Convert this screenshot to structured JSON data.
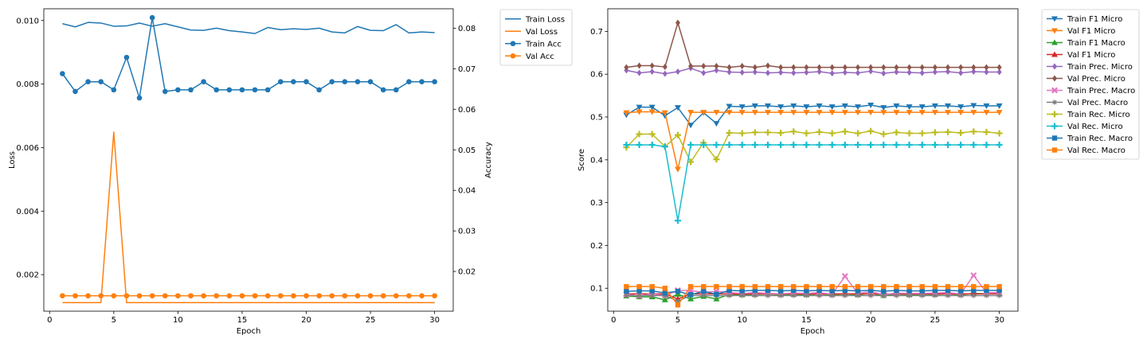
{
  "colors": {
    "blue": "#1f77b4",
    "orange": "#ff7f0e",
    "green": "#2ca02c",
    "red": "#d62728",
    "purple": "#9467bd",
    "brown": "#8c564b",
    "pink": "#e377c2",
    "gray": "#7f7f7f",
    "olive": "#bcbd22",
    "cyan": "#17becf"
  },
  "chart_data": [
    {
      "type": "line",
      "xlabel": "Epoch",
      "ylabel": "Loss",
      "y2label": "Accuracy",
      "xlim": [
        -0.45,
        31.45
      ],
      "ylim": [
        0.00085,
        0.01037
      ],
      "y2lim": [
        0.0102,
        0.0848
      ],
      "xticks": [
        0,
        5,
        10,
        15,
        20,
        25,
        30
      ],
      "yticks": [
        0.002,
        0.004,
        0.006,
        0.008,
        0.01
      ],
      "yticklabels": [
        "0.002",
        "0.004",
        "0.006",
        "0.008",
        "0.010"
      ],
      "y2ticks": [
        0.02,
        0.03,
        0.04,
        0.05,
        0.06,
        0.07,
        0.08
      ],
      "y2ticklabels": [
        "0.02",
        "0.03",
        "0.04",
        "0.05",
        "0.06",
        "0.07",
        "0.08"
      ],
      "grid": false,
      "legend": "outside-top-right",
      "x": [
        1,
        2,
        3,
        4,
        5,
        6,
        7,
        8,
        9,
        10,
        11,
        12,
        13,
        14,
        15,
        16,
        17,
        18,
        19,
        20,
        21,
        22,
        23,
        24,
        25,
        26,
        27,
        28,
        29,
        30
      ],
      "series": [
        {
          "name": "Train Loss",
          "axis": "left",
          "color": "#1f77b4",
          "marker": "none",
          "values": [
            0.0099,
            0.0098,
            0.00994,
            0.00992,
            0.00982,
            0.00983,
            0.00992,
            0.00982,
            0.0099,
            0.0098,
            0.0097,
            0.00969,
            0.00976,
            0.00968,
            0.00964,
            0.00959,
            0.00978,
            0.00971,
            0.00974,
            0.00972,
            0.00976,
            0.00964,
            0.00961,
            0.00981,
            0.00969,
            0.00968,
            0.00987,
            0.00961,
            0.00964,
            0.00962
          ]
        },
        {
          "name": "Val Loss",
          "axis": "left",
          "color": "#ff7f0e",
          "marker": "none",
          "values": [
            0.00112,
            0.00112,
            0.00112,
            0.00112,
            0.00649,
            0.00112,
            0.00112,
            0.00112,
            0.00112,
            0.00112,
            0.00112,
            0.00112,
            0.00112,
            0.00112,
            0.00112,
            0.00112,
            0.00112,
            0.00112,
            0.00112,
            0.00112,
            0.00112,
            0.00112,
            0.00112,
            0.00112,
            0.00112,
            0.00112,
            0.00112,
            0.00112,
            0.00112,
            0.00112
          ]
        },
        {
          "name": "Train Acc",
          "axis": "right",
          "color": "#1f77b4",
          "marker": "circle",
          "values": [
            0.0688,
            0.0644,
            0.0668,
            0.0668,
            0.0648,
            0.0728,
            0.0628,
            0.0826,
            0.0644,
            0.0648,
            0.0648,
            0.0668,
            0.0648,
            0.0648,
            0.0648,
            0.0648,
            0.0648,
            0.0668,
            0.0668,
            0.0668,
            0.0648,
            0.0668,
            0.0668,
            0.0668,
            0.0668,
            0.0648,
            0.0648,
            0.0668,
            0.0668,
            0.0668
          ]
        },
        {
          "name": "Val Acc",
          "axis": "right",
          "color": "#ff7f0e",
          "marker": "circle",
          "values": [
            0.014,
            0.014,
            0.014,
            0.014,
            0.014,
            0.014,
            0.014,
            0.014,
            0.014,
            0.014,
            0.014,
            0.014,
            0.014,
            0.014,
            0.014,
            0.014,
            0.014,
            0.014,
            0.014,
            0.014,
            0.014,
            0.014,
            0.014,
            0.014,
            0.014,
            0.014,
            0.014,
            0.014,
            0.014,
            0.014
          ]
        }
      ]
    },
    {
      "type": "line",
      "xlabel": "Epoch",
      "ylabel": "Score",
      "xlim": [
        -0.45,
        31.45
      ],
      "ylim": [
        0.0465,
        0.7528
      ],
      "xticks": [
        0,
        5,
        10,
        15,
        20,
        25,
        30
      ],
      "yticks": [
        0.1,
        0.2,
        0.3,
        0.4,
        0.5,
        0.6,
        0.7
      ],
      "yticklabels": [
        "0.1",
        "0.2",
        "0.3",
        "0.4",
        "0.5",
        "0.6",
        "0.7"
      ],
      "grid": false,
      "legend": "outside-top-right",
      "x": [
        1,
        2,
        3,
        4,
        5,
        6,
        7,
        8,
        9,
        10,
        11,
        12,
        13,
        14,
        15,
        16,
        17,
        18,
        19,
        20,
        21,
        22,
        23,
        24,
        25,
        26,
        27,
        28,
        29,
        30
      ],
      "series": [
        {
          "name": "Train F1 Micro",
          "color": "#1f77b4",
          "marker": "tri-down",
          "values": [
            0.505,
            0.523,
            0.523,
            0.503,
            0.522,
            0.481,
            0.51,
            0.485,
            0.525,
            0.524,
            0.526,
            0.526,
            0.524,
            0.526,
            0.524,
            0.526,
            0.524,
            0.526,
            0.524,
            0.528,
            0.522,
            0.526,
            0.524,
            0.524,
            0.526,
            0.526,
            0.524,
            0.527,
            0.526,
            0.526
          ]
        },
        {
          "name": "Val F1 Micro",
          "color": "#ff7f0e",
          "marker": "tri-down",
          "values": [
            0.51,
            0.512,
            0.512,
            0.51,
            0.378,
            0.511,
            0.511,
            0.511,
            0.511,
            0.511,
            0.511,
            0.511,
            0.511,
            0.511,
            0.511,
            0.511,
            0.511,
            0.511,
            0.511,
            0.511,
            0.511,
            0.511,
            0.511,
            0.511,
            0.511,
            0.511,
            0.511,
            0.511,
            0.511,
            0.511
          ]
        },
        {
          "name": "Train F1 Macro",
          "color": "#2ca02c",
          "marker": "tri-up",
          "values": [
            0.082,
            0.08,
            0.08,
            0.073,
            0.086,
            0.075,
            0.081,
            0.075,
            0.086,
            0.085,
            0.086,
            0.087,
            0.085,
            0.086,
            0.085,
            0.087,
            0.085,
            0.087,
            0.085,
            0.088,
            0.083,
            0.087,
            0.085,
            0.086,
            0.086,
            0.087,
            0.085,
            0.088,
            0.087,
            0.087
          ]
        },
        {
          "name": "Val F1 Micro",
          "color": "#d62728",
          "marker": "tri-up",
          "values": [
            0.087,
            0.087,
            0.087,
            0.087,
            0.075,
            0.087,
            0.087,
            0.087,
            0.087,
            0.087,
            0.087,
            0.087,
            0.087,
            0.087,
            0.087,
            0.087,
            0.087,
            0.087,
            0.087,
            0.087,
            0.087,
            0.087,
            0.087,
            0.087,
            0.087,
            0.087,
            0.087,
            0.087,
            0.087,
            0.087
          ]
        },
        {
          "name": "Train Prec. Micro",
          "color": "#9467bd",
          "marker": "diamond",
          "values": [
            0.609,
            0.603,
            0.606,
            0.601,
            0.606,
            0.614,
            0.603,
            0.609,
            0.605,
            0.604,
            0.605,
            0.603,
            0.604,
            0.603,
            0.604,
            0.606,
            0.602,
            0.604,
            0.603,
            0.607,
            0.602,
            0.605,
            0.604,
            0.603,
            0.605,
            0.606,
            0.603,
            0.606,
            0.605,
            0.605
          ]
        },
        {
          "name": "Val Prec. Micro",
          "color": "#8c564b",
          "marker": "diamond",
          "values": [
            0.616,
            0.62,
            0.62,
            0.617,
            0.72,
            0.619,
            0.619,
            0.619,
            0.616,
            0.619,
            0.616,
            0.62,
            0.616,
            0.616,
            0.616,
            0.616,
            0.616,
            0.616,
            0.616,
            0.616,
            0.616,
            0.616,
            0.616,
            0.616,
            0.616,
            0.616,
            0.616,
            0.616,
            0.616,
            0.616
          ]
        },
        {
          "name": "Train Prec. Macro",
          "color": "#e377c2",
          "marker": "x",
          "values": [
            0.086,
            0.082,
            0.087,
            0.083,
            0.095,
            0.095,
            0.09,
            0.093,
            0.09,
            0.088,
            0.09,
            0.088,
            0.087,
            0.089,
            0.088,
            0.09,
            0.086,
            0.128,
            0.088,
            0.092,
            0.085,
            0.089,
            0.088,
            0.088,
            0.089,
            0.09,
            0.087,
            0.13,
            0.09,
            0.09
          ]
        },
        {
          "name": "Val Prec. Macro",
          "color": "#7f7f7f",
          "marker": "star",
          "values": [
            0.083,
            0.083,
            0.083,
            0.083,
            0.07,
            0.083,
            0.083,
            0.083,
            0.083,
            0.083,
            0.083,
            0.083,
            0.083,
            0.083,
            0.083,
            0.083,
            0.083,
            0.083,
            0.083,
            0.083,
            0.083,
            0.083,
            0.083,
            0.083,
            0.083,
            0.083,
            0.083,
            0.083,
            0.083,
            0.083
          ]
        },
        {
          "name": "Train Rec. Micro",
          "color": "#bcbd22",
          "marker": "plus",
          "values": [
            0.429,
            0.46,
            0.46,
            0.431,
            0.458,
            0.395,
            0.44,
            0.401,
            0.463,
            0.462,
            0.464,
            0.464,
            0.463,
            0.466,
            0.462,
            0.465,
            0.462,
            0.466,
            0.462,
            0.467,
            0.46,
            0.464,
            0.462,
            0.462,
            0.464,
            0.465,
            0.463,
            0.466,
            0.465,
            0.462
          ]
        },
        {
          "name": "Val Rec. Micro",
          "color": "#17becf",
          "marker": "plus",
          "values": [
            0.435,
            0.435,
            0.435,
            0.431,
            0.258,
            0.435,
            0.435,
            0.435,
            0.435,
            0.435,
            0.435,
            0.435,
            0.435,
            0.435,
            0.435,
            0.435,
            0.435,
            0.435,
            0.435,
            0.435,
            0.435,
            0.435,
            0.435,
            0.435,
            0.435,
            0.435,
            0.435,
            0.435,
            0.435,
            0.435
          ]
        },
        {
          "name": "Train Rec. Macro",
          "color": "#1f77b4",
          "marker": "square",
          "values": [
            0.093,
            0.094,
            0.094,
            0.089,
            0.093,
            0.085,
            0.093,
            0.086,
            0.095,
            0.094,
            0.095,
            0.095,
            0.094,
            0.095,
            0.094,
            0.095,
            0.094,
            0.095,
            0.094,
            0.095,
            0.093,
            0.095,
            0.094,
            0.094,
            0.095,
            0.095,
            0.094,
            0.095,
            0.095,
            0.095
          ]
        },
        {
          "name": "Val Rec. Macro",
          "color": "#ff7f0e",
          "marker": "square",
          "values": [
            0.104,
            0.104,
            0.104,
            0.1,
            0.061,
            0.104,
            0.104,
            0.104,
            0.104,
            0.104,
            0.104,
            0.104,
            0.104,
            0.104,
            0.104,
            0.104,
            0.104,
            0.104,
            0.104,
            0.104,
            0.104,
            0.104,
            0.104,
            0.104,
            0.104,
            0.104,
            0.104,
            0.104,
            0.104,
            0.104
          ]
        }
      ]
    }
  ]
}
